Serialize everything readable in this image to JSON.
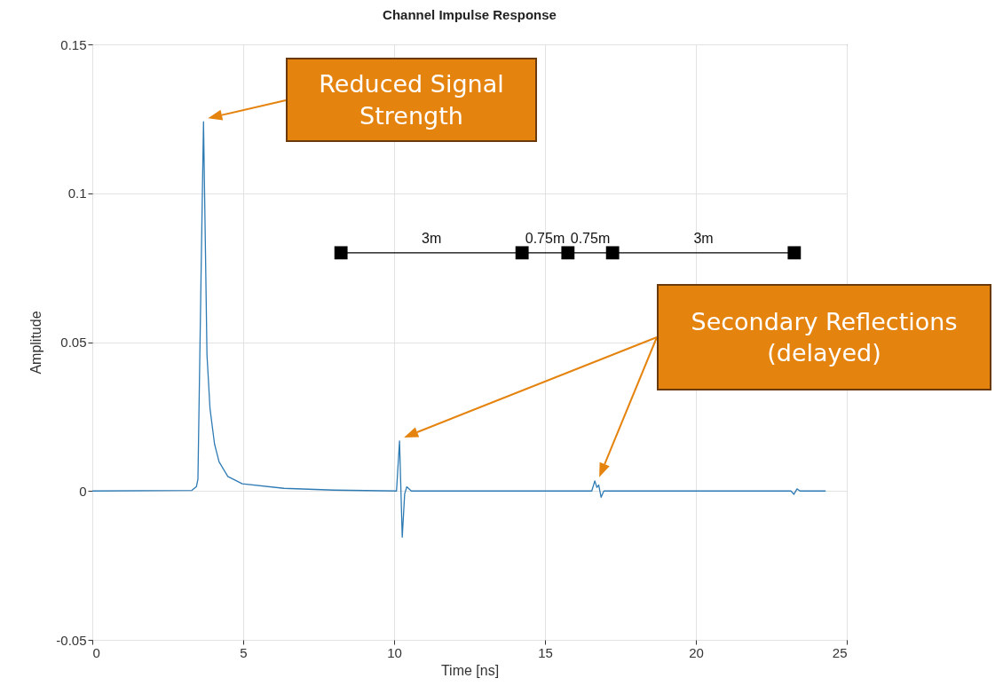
{
  "chart_data": {
    "type": "line",
    "title": "Channel Impulse Response",
    "xlabel": "Time [ns]",
    "ylabel": "Amplitude",
    "xlim": [
      0,
      25
    ],
    "xticks": [
      0,
      5,
      10,
      15,
      20,
      25
    ],
    "ylim": [
      -0.05,
      0.15
    ],
    "yticks": [
      -0.05,
      0,
      0.05,
      0.1,
      0.15
    ],
    "grid": true,
    "line_style": "solid",
    "series": [
      {
        "color": "#2e7bb4",
        "marker": "none",
        "x": [
          0,
          3.3,
          3.45,
          3.5,
          3.6,
          3.685,
          3.75,
          3.8,
          3.9,
          4.05,
          4.2,
          4.49,
          4.97,
          6.35,
          8,
          10.08,
          10.18,
          10.27,
          10.35,
          10.42,
          10.57,
          16.55,
          16.65,
          16.72,
          16.78,
          16.86,
          16.95,
          17.09,
          23.15,
          23.25,
          23.35,
          23.45,
          24.3
        ],
        "values": [
          0,
          0.0002,
          0.0015,
          0.004,
          0.07,
          0.124,
          0.08,
          0.0456,
          0.0277,
          0.0158,
          0.0098,
          0.0049,
          0.0024,
          0.0009,
          0.0003,
          0,
          0.0168,
          -0.0155,
          -0.001,
          0.0014,
          0,
          0,
          0.0034,
          0.0012,
          0.002,
          -0.0021,
          0,
          0,
          0,
          -0.0011,
          0.0007,
          0,
          0
        ]
      },
      {
        "color": "#000000",
        "marker": "square",
        "x": [
          8.24,
          14.24,
          15.76,
          17.24,
          23.26
        ],
        "values": [
          0.08,
          0.08,
          0.08,
          0.08,
          0.08
        ]
      }
    ],
    "annotations": [
      "Reduced Signal Strength",
      "Secondary Reflections (delayed)",
      "3m",
      "0.75m",
      "0.75m",
      "3m"
    ]
  }
}
